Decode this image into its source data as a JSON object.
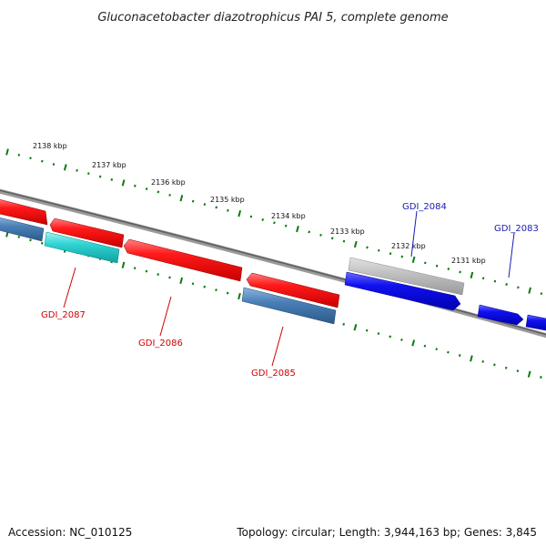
{
  "title": "Gluconacetobacter diazotrophicus PAI 5, complete genome",
  "scale_labels": [
    "2138 kbp",
    "2137 kbp",
    "2136 kbp",
    "2135 kbp",
    "2134 kbp",
    "2133 kbp",
    "2132 kbp",
    "2131 kbp"
  ],
  "genes": [
    {
      "label": "GDI_2087",
      "strand": "-",
      "color": "#2ed3d3"
    },
    {
      "label": "GDI_2086",
      "strand": "-",
      "color": "#ee1111"
    },
    {
      "label": "GDI_2085",
      "strand": "-",
      "color": "#4a7fb6"
    },
    {
      "label": "GDI_2084",
      "strand": "+",
      "color": "#1010e8"
    },
    {
      "label": "GDI_2083",
      "strand": "+",
      "color": "#1010e8"
    }
  ],
  "colors": {
    "backbone": "#7a7a7a",
    "ticks": "#0e7a0e",
    "minus_label": "#d00000",
    "plus_label": "#1a1ab0",
    "forward_cds": "#1010e8",
    "reverse_cds": "#ee1111",
    "gray_feature": "#bdbdbd",
    "steel_feature": "#4a7fb6",
    "cyan_feature": "#2ed3d3"
  },
  "footer": {
    "accession": "Accession: NC_010125",
    "topology": "Topology: circular; Length: 3,944,163 bp; Genes: 3,845"
  }
}
